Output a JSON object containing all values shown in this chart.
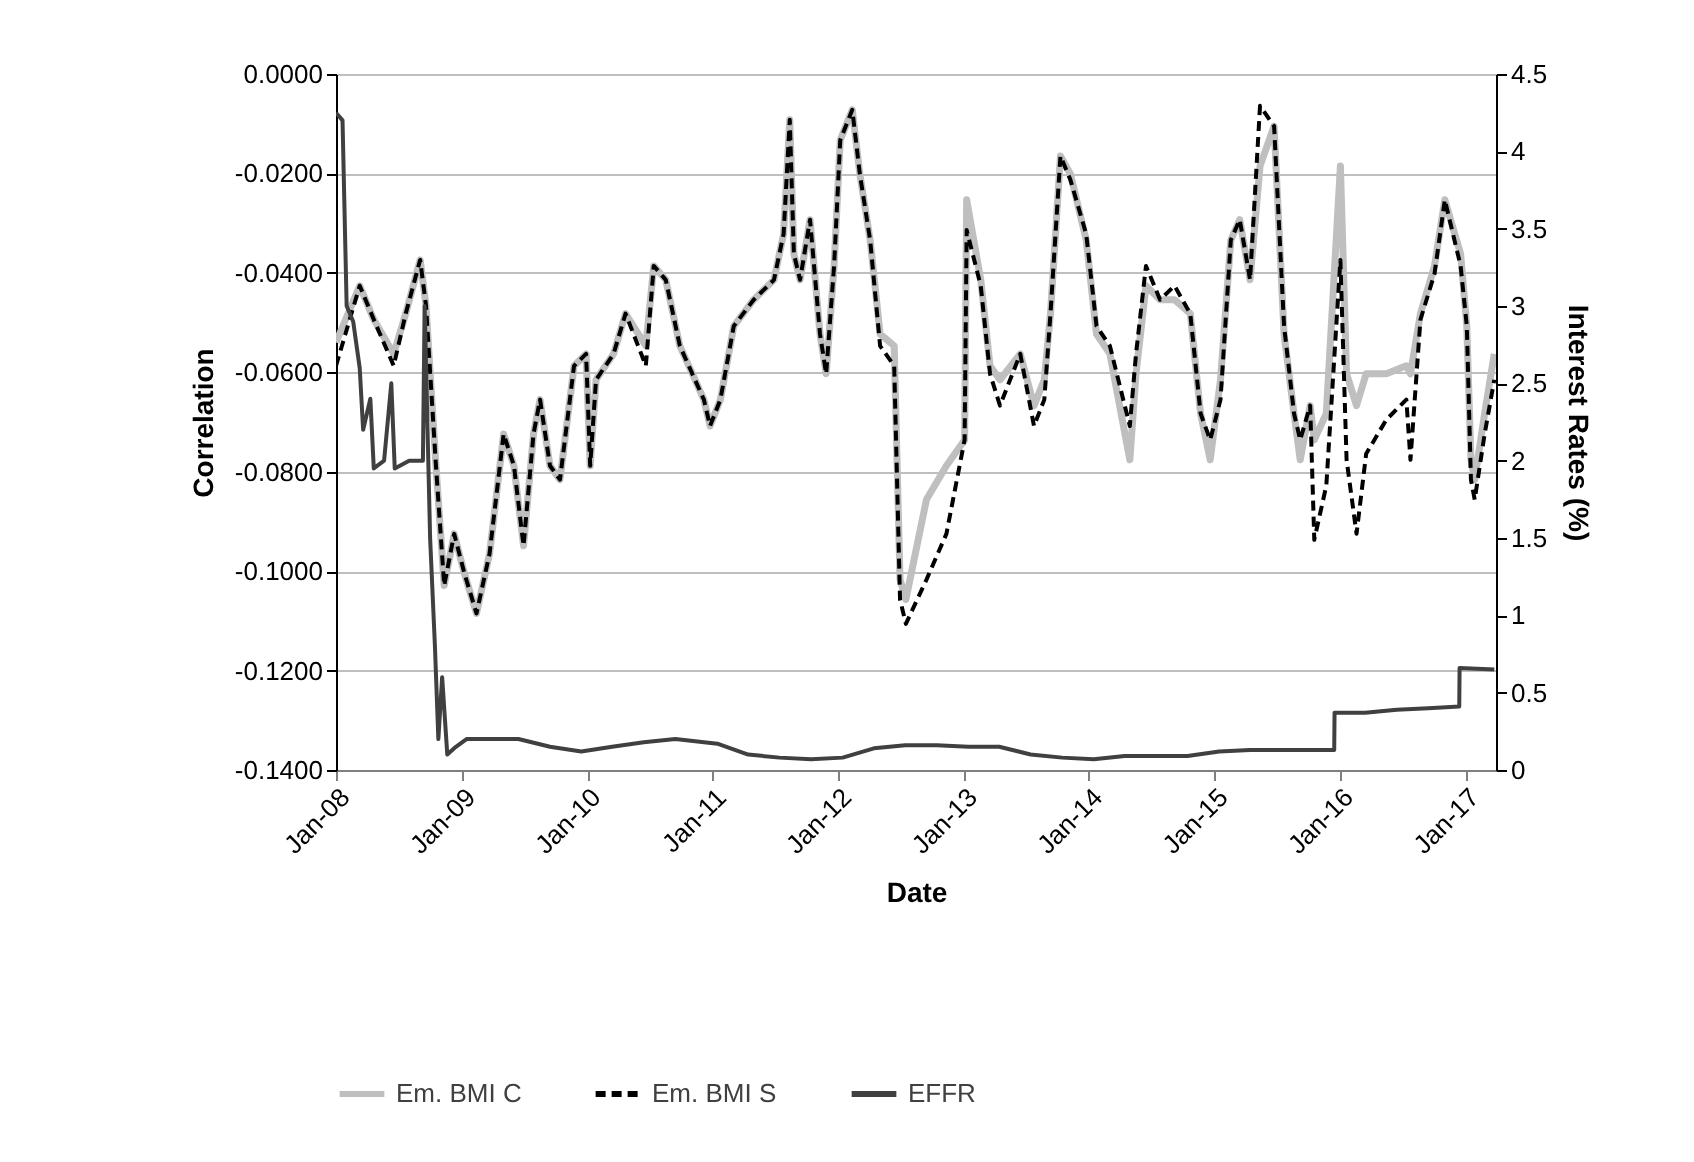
{
  "chart_data": {
    "type": "line",
    "xlabel": "Date",
    "ylabel": "Correlation",
    "y2label": "Interest Rates (%)",
    "xlim": [
      "2008-01-01",
      "2017-03-31"
    ],
    "xticks": [
      {
        "value": "2008-01-01",
        "label": "Jan-08"
      },
      {
        "value": "2009-01-01",
        "label": "Jan-09"
      },
      {
        "value": "2010-01-01",
        "label": "Jan-10"
      },
      {
        "value": "2011-01-01",
        "label": "Jan-11"
      },
      {
        "value": "2012-01-01",
        "label": "Jan-12"
      },
      {
        "value": "2013-01-01",
        "label": "Jan-13"
      },
      {
        "value": "2014-01-01",
        "label": "Jan-14"
      },
      {
        "value": "2015-01-01",
        "label": "Jan-15"
      },
      {
        "value": "2016-01-01",
        "label": "Jan-16"
      },
      {
        "value": "2017-01-01",
        "label": "Jan-17"
      }
    ],
    "ylim": [
      -0.14,
      0
    ],
    "yticks": [
      {
        "value": -0.14,
        "label": "-0.1400"
      },
      {
        "value": -0.12,
        "label": "-0.1200"
      },
      {
        "value": -0.1,
        "label": "-0.1000"
      },
      {
        "value": -0.08,
        "label": "-0.0800"
      },
      {
        "value": -0.06,
        "label": "-0.0600"
      },
      {
        "value": -0.04,
        "label": "-0.0400"
      },
      {
        "value": -0.02,
        "label": "-0.0200"
      },
      {
        "value": 0,
        "label": "0.0000"
      }
    ],
    "y2lim": [
      0,
      4.5
    ],
    "y2ticks": [
      0,
      0.5,
      1,
      1.5,
      2,
      2.5,
      3,
      3.5,
      4,
      4.5
    ],
    "grid": "y",
    "legend": "bottom",
    "marker": "none",
    "series": [
      {
        "name": "Em. BMI C",
        "color": "#bfbfbf",
        "line_style": "solid",
        "x": [
          "2008-01-01",
          "2008-03-10",
          "2008-04-20",
          "2008-06-17",
          "2008-07-22",
          "2008-09-02",
          "2008-09-19",
          "2008-10-18",
          "2008-11-11",
          "2008-12-10",
          "2009-01-09",
          "2009-02-13",
          "2009-03-23",
          "2009-05-03",
          "2009-06-02",
          "2009-06-30",
          "2009-07-29",
          "2009-08-17",
          "2009-09-15",
          "2009-10-14",
          "2009-11-24",
          "2009-12-29",
          "2010-01-10",
          "2010-01-27",
          "2010-03-19",
          "2010-04-23",
          "2010-06-21",
          "2010-07-14",
          "2010-08-18",
          "2010-09-28",
          "2010-12-07",
          "2010-12-25",
          "2011-01-24",
          "2011-03-04",
          "2011-05-01",
          "2011-06-29",
          "2011-07-27",
          "2011-08-14",
          "2011-08-26",
          "2011-09-13",
          "2011-10-12",
          "2011-11-10",
          "2011-11-28",
          "2011-12-21",
          "2012-01-08",
          "2012-02-12",
          "2012-03-05",
          "2012-04-04",
          "2012-05-03",
          "2012-06-13",
          "2012-06-30",
          "2012-07-17",
          "2012-09-15",
          "2012-11-12",
          "2013-01-04",
          "2013-01-10",
          "2013-02-20",
          "2013-03-19",
          "2013-04-17",
          "2013-06-15",
          "2013-07-25",
          "2013-08-24",
          "2013-09-11",
          "2013-10-10",
          "2013-11-08",
          "2013-12-24",
          "2014-01-23",
          "2014-03-03",
          "2014-04-30",
          "2014-05-18",
          "2014-06-16",
          "2014-07-27",
          "2014-09-07",
          "2014-10-23",
          "2014-11-22",
          "2014-12-20",
          "2015-01-19",
          "2015-02-18",
          "2015-03-16",
          "2015-04-15",
          "2015-05-14",
          "2015-06-24",
          "2015-07-23",
          "2015-08-21",
          "2015-09-08",
          "2015-10-07",
          "2015-10-19",
          "2015-11-23",
          "2016-01-03",
          "2016-01-21",
          "2016-02-19",
          "2016-03-18",
          "2016-05-16",
          "2016-07-13",
          "2016-07-25",
          "2016-08-23",
          "2016-10-03",
          "2016-11-02",
          "2016-12-18",
          "2017-01-05",
          "2017-01-17",
          "2017-01-28",
          "2017-02-26",
          "2017-03-26"
        ],
        "values": [
          -0.054,
          -0.0426,
          -0.0494,
          -0.0563,
          -0.0482,
          -0.0374,
          -0.0466,
          -0.0788,
          -0.1029,
          -0.0925,
          -0.1005,
          -0.1085,
          -0.0965,
          -0.0724,
          -0.0788,
          -0.0949,
          -0.0724,
          -0.0655,
          -0.0788,
          -0.0816,
          -0.0587,
          -0.0563,
          -0.0788,
          -0.0615,
          -0.0563,
          -0.0482,
          -0.0547,
          -0.0386,
          -0.0414,
          -0.0547,
          -0.0655,
          -0.0708,
          -0.0655,
          -0.0507,
          -0.0454,
          -0.0414,
          -0.0322,
          -0.0092,
          -0.0362,
          -0.0414,
          -0.0293,
          -0.0523,
          -0.0603,
          -0.0386,
          -0.0133,
          -0.0072,
          -0.0201,
          -0.0334,
          -0.0523,
          -0.0547,
          -0.1017,
          -0.1057,
          -0.0856,
          -0.0788,
          -0.0736,
          -0.0253,
          -0.0414,
          -0.0587,
          -0.0615,
          -0.0563,
          -0.0667,
          -0.0615,
          -0.0482,
          -0.0165,
          -0.0201,
          -0.0334,
          -0.0523,
          -0.0563,
          -0.0776,
          -0.0603,
          -0.0426,
          -0.0454,
          -0.0454,
          -0.0482,
          -0.0683,
          -0.0776,
          -0.0615,
          -0.0334,
          -0.0293,
          -0.0414,
          -0.0185,
          -0.0105,
          -0.0523,
          -0.0683,
          -0.0776,
          -0.0667,
          -0.0736,
          -0.0683,
          -0.0185,
          -0.0603,
          -0.0667,
          -0.0603,
          -0.0603,
          -0.0587,
          -0.0603,
          -0.0482,
          -0.0386,
          -0.0253,
          -0.0362,
          -0.0507,
          -0.0776,
          -0.0816,
          -0.0683,
          -0.0563
        ]
      },
      {
        "name": "Em. BMI S",
        "color": "#000000",
        "line_style": "dashed",
        "x": [
          "2008-01-01",
          "2008-03-10",
          "2008-04-20",
          "2008-06-17",
          "2008-07-22",
          "2008-09-02",
          "2008-09-19",
          "2008-10-18",
          "2008-11-11",
          "2008-12-10",
          "2009-01-09",
          "2009-02-13",
          "2009-03-23",
          "2009-05-03",
          "2009-06-02",
          "2009-06-30",
          "2009-07-29",
          "2009-08-17",
          "2009-09-15",
          "2009-10-14",
          "2009-11-24",
          "2009-12-29",
          "2010-01-10",
          "2010-01-27",
          "2010-03-19",
          "2010-04-23",
          "2010-06-21",
          "2010-07-14",
          "2010-08-18",
          "2010-09-28",
          "2010-12-07",
          "2010-12-25",
          "2011-01-24",
          "2011-03-04",
          "2011-05-01",
          "2011-06-29",
          "2011-07-27",
          "2011-08-14",
          "2011-08-26",
          "2011-09-13",
          "2011-10-12",
          "2011-11-10",
          "2011-11-28",
          "2011-12-21",
          "2012-01-08",
          "2012-02-12",
          "2012-03-05",
          "2012-04-04",
          "2012-05-03",
          "2012-06-13",
          "2012-06-30",
          "2012-07-17",
          "2012-09-15",
          "2012-11-12",
          "2013-01-04",
          "2013-01-10",
          "2013-02-20",
          "2013-03-19",
          "2013-04-17",
          "2013-06-15",
          "2013-07-25",
          "2013-08-24",
          "2013-09-11",
          "2013-10-10",
          "2013-11-08",
          "2013-12-24",
          "2014-01-23",
          "2014-03-03",
          "2014-04-30",
          "2014-05-18",
          "2014-06-16",
          "2014-07-27",
          "2014-09-07",
          "2014-10-23",
          "2014-11-22",
          "2014-12-20",
          "2015-01-19",
          "2015-02-18",
          "2015-03-16",
          "2015-04-15",
          "2015-05-14",
          "2015-06-24",
          "2015-07-23",
          "2015-08-21",
          "2015-09-08",
          "2015-10-07",
          "2015-10-19",
          "2015-11-23",
          "2016-01-03",
          "2016-01-21",
          "2016-02-19",
          "2016-03-18",
          "2016-05-16",
          "2016-07-13",
          "2016-07-25",
          "2016-08-23",
          "2016-10-03",
          "2016-11-02",
          "2016-12-18",
          "2017-01-05",
          "2017-01-17",
          "2017-01-28",
          "2017-02-26",
          "2017-03-26"
        ],
        "values": [
          -0.0587,
          -0.0426,
          -0.0494,
          -0.0587,
          -0.0482,
          -0.0374,
          -0.0466,
          -0.0788,
          -0.1029,
          -0.0925,
          -0.1005,
          -0.1085,
          -0.0965,
          -0.0724,
          -0.0788,
          -0.0949,
          -0.0724,
          -0.0655,
          -0.0788,
          -0.0816,
          -0.0587,
          -0.0563,
          -0.0788,
          -0.0615,
          -0.0563,
          -0.0482,
          -0.0587,
          -0.0386,
          -0.0414,
          -0.0547,
          -0.0655,
          -0.0708,
          -0.0655,
          -0.0507,
          -0.0454,
          -0.0414,
          -0.0322,
          -0.0092,
          -0.0362,
          -0.0414,
          -0.0293,
          -0.0523,
          -0.0603,
          -0.0386,
          -0.0133,
          -0.0072,
          -0.0201,
          -0.0334,
          -0.0547,
          -0.0587,
          -0.1057,
          -0.1106,
          -0.1017,
          -0.0925,
          -0.0736,
          -0.0314,
          -0.0426,
          -0.0603,
          -0.0667,
          -0.0563,
          -0.0708,
          -0.0655,
          -0.0482,
          -0.0165,
          -0.0213,
          -0.0322,
          -0.0507,
          -0.0547,
          -0.0708,
          -0.0563,
          -0.0386,
          -0.0454,
          -0.0426,
          -0.0482,
          -0.0683,
          -0.0736,
          -0.0655,
          -0.0334,
          -0.0293,
          -0.0414,
          -0.0064,
          -0.0105,
          -0.0507,
          -0.0683,
          -0.0736,
          -0.0667,
          -0.0937,
          -0.0828,
          -0.0374,
          -0.0776,
          -0.0925,
          -0.0764,
          -0.0695,
          -0.0655,
          -0.0776,
          -0.0494,
          -0.0402,
          -0.0253,
          -0.0386,
          -0.0507,
          -0.0816,
          -0.0856,
          -0.0724,
          -0.0615
        ]
      },
      {
        "name": "EFFR",
        "color": "#404040",
        "line_style": "solid",
        "axis": "y2",
        "x": [
          "2008-01-01",
          "2008-01-20",
          "2008-02-01",
          "2008-02-20",
          "2008-03-10",
          "2008-03-20",
          "2008-04-10",
          "2008-04-20",
          "2008-05-20",
          "2008-06-10",
          "2008-06-20",
          "2008-08-01",
          "2008-09-10",
          "2008-09-15",
          "2008-10-01",
          "2008-10-15",
          "2008-10-25",
          "2008-11-05",
          "2008-11-20",
          "2008-12-15",
          "2009-01-15",
          "2009-03-15",
          "2009-06-15",
          "2009-09-15",
          "2009-12-15",
          "2010-03-15",
          "2010-06-15",
          "2010-09-15",
          "2011-01-15",
          "2011-04-15",
          "2011-07-15",
          "2011-10-15",
          "2012-01-15",
          "2012-04-15",
          "2012-07-15",
          "2012-10-15",
          "2013-01-15",
          "2013-04-15",
          "2013-07-15",
          "2013-10-15",
          "2014-01-15",
          "2014-04-15",
          "2014-07-15",
          "2014-10-15",
          "2015-01-15",
          "2015-04-15",
          "2015-07-15",
          "2015-10-15",
          "2015-12-16",
          "2015-12-17",
          "2016-03-15",
          "2016-06-15",
          "2016-09-15",
          "2016-12-14",
          "2016-12-15",
          "2017-03-26"
        ],
        "values": [
          4.25,
          4.2,
          3.0,
          2.9,
          2.6,
          2.2,
          2.4,
          1.95,
          2.0,
          2.5,
          1.95,
          2.0,
          2.0,
          3.0,
          1.5,
          0.8,
          0.2,
          0.6,
          0.1,
          0.15,
          0.2,
          0.2,
          0.2,
          0.15,
          0.12,
          0.15,
          0.18,
          0.2,
          0.17,
          0.1,
          0.08,
          0.07,
          0.08,
          0.14,
          0.16,
          0.16,
          0.15,
          0.15,
          0.1,
          0.08,
          0.07,
          0.09,
          0.09,
          0.09,
          0.12,
          0.13,
          0.13,
          0.13,
          0.13,
          0.37,
          0.37,
          0.39,
          0.4,
          0.41,
          0.66,
          0.65
        ]
      }
    ]
  }
}
